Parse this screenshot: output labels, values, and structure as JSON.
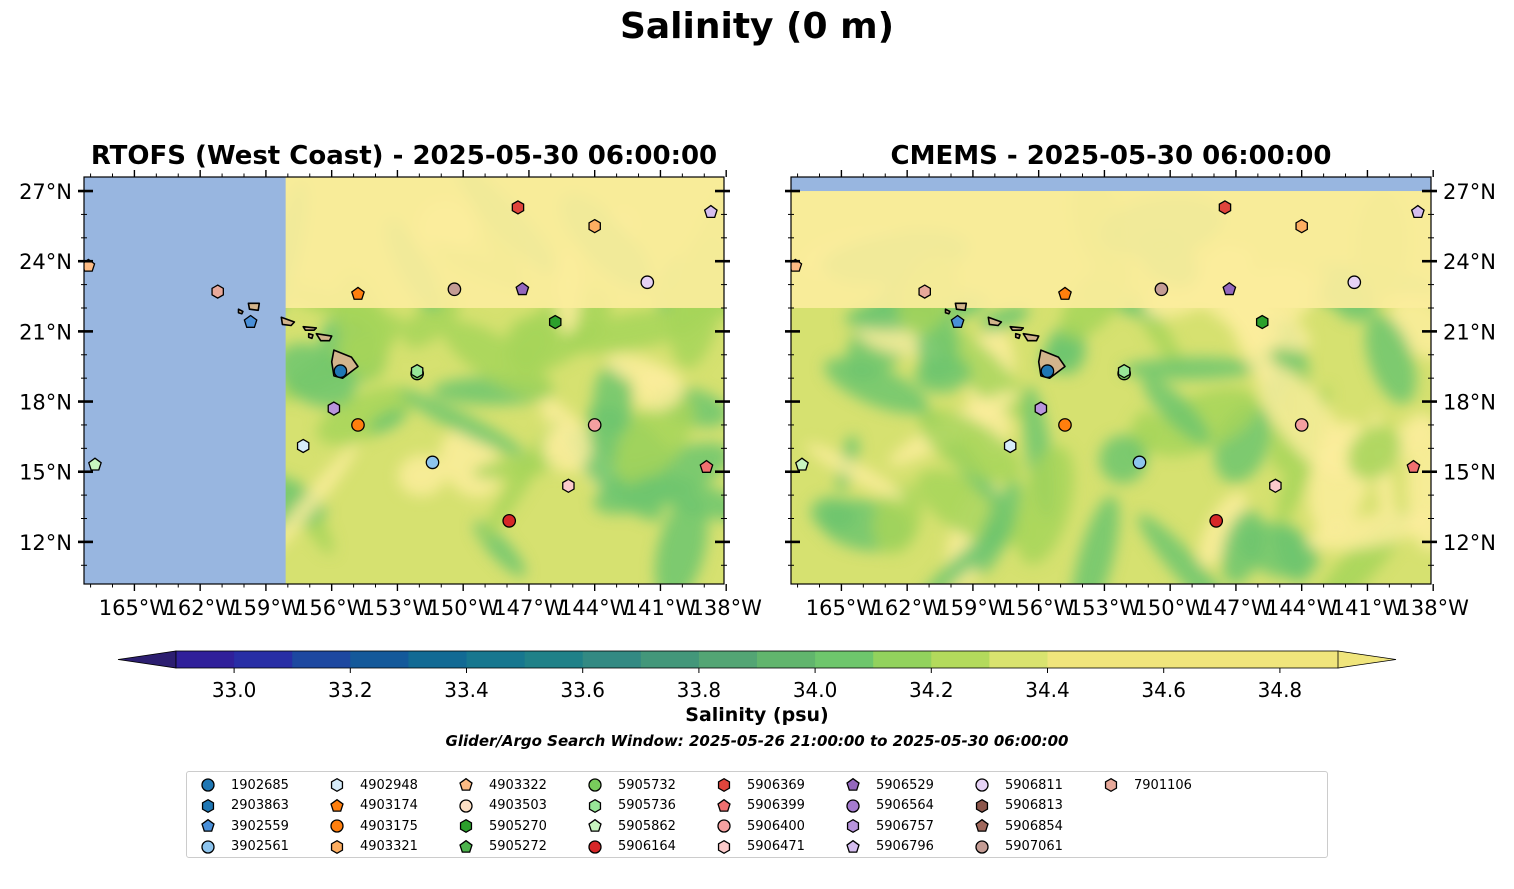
{
  "figure": {
    "suptitle": "Salinity (0 m)",
    "search_window": "Glider/Argo Search Window: 2025-05-26 21:00:00 to 2025-05-30 06:00:00"
  },
  "colors": {
    "land": "#d2b48c",
    "nodata": "#98b6e0",
    "background_fill": "#fbed9c",
    "ocean_low": "#a6d55a",
    "ocean_mid": "#d6e170",
    "ocean_high": "#6dc56e",
    "colorbar": [
      "#2c1e70",
      "#30209a",
      "#282ea5",
      "#1d48a0",
      "#14599a",
      "#126a94",
      "#17778f",
      "#208188",
      "#338a83",
      "#43977a",
      "#53a574",
      "#61b56d",
      "#6ec66c",
      "#92d25d",
      "#b3da5c",
      "#d9e36f",
      "#f0e57c"
    ]
  },
  "chart_data": [
    {
      "type": "heatmap",
      "title": "RTOFS (West Coast) - 2025-05-30 06:00:00",
      "x_ticks": [
        "165°W",
        "162°W",
        "159°W",
        "156°W",
        "153°W",
        "150°W",
        "147°W",
        "144°W",
        "141°W",
        "138°W"
      ],
      "x_tick_values": [
        -165,
        -162,
        -159,
        -156,
        -153,
        -150,
        -147,
        -144,
        -141,
        -138
      ],
      "y_ticks": [
        "12°N",
        "15°N",
        "18°N",
        "21°N",
        "24°N",
        "27°N"
      ],
      "y_tick_values": [
        12,
        15,
        18,
        21,
        24,
        27
      ],
      "xlim": [
        -167.3,
        -138.1
      ],
      "ylim": [
        10.2,
        27.6
      ],
      "data_coverage": {
        "lon_min": -158.1
      },
      "grid": false
    },
    {
      "type": "heatmap",
      "title": "CMEMS - 2025-05-30 06:00:00",
      "x_ticks": [
        "165°W",
        "162°W",
        "159°W",
        "156°W",
        "153°W",
        "150°W",
        "147°W",
        "144°W",
        "141°W",
        "138°W"
      ],
      "x_tick_values": [
        -165,
        -162,
        -159,
        -156,
        -153,
        -150,
        -147,
        -144,
        -141,
        -138
      ],
      "y_ticks": [
        "12°N",
        "15°N",
        "18°N",
        "21°N",
        "24°N",
        "27°N"
      ],
      "y_tick_values": [
        12,
        15,
        18,
        21,
        24,
        27
      ],
      "xlim": [
        -167.3,
        -138.1
      ],
      "ylim": [
        10.2,
        27.6
      ],
      "data_coverage": {
        "lat_max": 27.0
      },
      "grid": false
    }
  ],
  "colorbar": {
    "label": "Salinity (psu)",
    "min": 32.9,
    "max": 34.9,
    "step": 0.1,
    "tick_values": [
      33.0,
      33.2,
      33.4,
      33.6,
      33.8,
      34.0,
      34.2,
      34.4,
      34.6,
      34.8
    ],
    "tick_labels": [
      "33.0",
      "33.2",
      "33.4",
      "33.6",
      "33.8",
      "34.0",
      "34.2",
      "34.4",
      "34.6",
      "34.8"
    ],
    "extend": "both"
  },
  "floats": [
    {
      "id": "1902685",
      "marker": "circle",
      "color": "#1f77b4",
      "lon": -155.6,
      "lat": 19.3
    },
    {
      "id": "2903863",
      "marker": "hexagon",
      "color": "#1f77b4",
      "lon": -164.3,
      "lat": 20.0,
      "in_legend_only": true
    },
    {
      "id": "3902559",
      "marker": "pentagon",
      "color": "#4a90d9",
      "lon": -159.7,
      "lat": 21.4
    },
    {
      "id": "3902561",
      "marker": "circle",
      "color": "#8dc4ee",
      "lon": -151.4,
      "lat": 15.4
    },
    {
      "id": "4902948",
      "marker": "hexagon",
      "color": "#d6ecfa",
      "lon": -157.3,
      "lat": 16.1
    },
    {
      "id": "4903174",
      "marker": "pentagon",
      "color": "#ff7f0e",
      "lon": -154.8,
      "lat": 22.6
    },
    {
      "id": "4903175",
      "marker": "circle",
      "color": "#ff7f0e",
      "lon": -154.8,
      "lat": 17.0
    },
    {
      "id": "4903321",
      "marker": "hexagon",
      "color": "#fdae61",
      "lon": -144.0,
      "lat": 25.5
    },
    {
      "id": "4903322",
      "marker": "pentagon",
      "color": "#fdbb84",
      "lon": -167.1,
      "lat": 23.8
    },
    {
      "id": "4903503",
      "marker": "circle",
      "color": "#fde0c5",
      "lon": -148.0,
      "lat": 11.0,
      "in_legend_only": true
    },
    {
      "id": "5905270",
      "marker": "hexagon",
      "color": "#2ca02c",
      "lon": -145.8,
      "lat": 21.4
    },
    {
      "id": "5905272",
      "marker": "pentagon",
      "color": "#4db34d",
      "lon": -149.5,
      "lat": 11.5,
      "in_legend_only": true
    },
    {
      "id": "5905732",
      "marker": "circle",
      "color": "#78cc5c",
      "lon": -152.1,
      "lat": 19.2
    },
    {
      "id": "5905736",
      "marker": "hexagon",
      "color": "#98e698",
      "lon": -152.1,
      "lat": 19.3
    },
    {
      "id": "5905862",
      "marker": "pentagon",
      "color": "#c8f5c0",
      "lon": -166.8,
      "lat": 15.3
    },
    {
      "id": "5906164",
      "marker": "circle",
      "color": "#d62728",
      "lon": -147.9,
      "lat": 12.9
    },
    {
      "id": "5906369",
      "marker": "hexagon",
      "color": "#e0453c",
      "lon": -147.5,
      "lat": 26.3
    },
    {
      "id": "5906399",
      "marker": "pentagon",
      "color": "#f07070",
      "lon": -138.9,
      "lat": 15.2
    },
    {
      "id": "5906400",
      "marker": "circle",
      "color": "#f4a0a0",
      "lon": -144.0,
      "lat": 17.0
    },
    {
      "id": "5906471",
      "marker": "hexagon",
      "color": "#fbcaca",
      "lon": -145.2,
      "lat": 14.4
    },
    {
      "id": "5906529",
      "marker": "pentagon",
      "color": "#9467bd",
      "lon": -147.3,
      "lat": 22.8
    },
    {
      "id": "5906564",
      "marker": "circle",
      "color": "#a57bcf",
      "lon": -142.0,
      "lat": 11.4,
      "in_legend_only": true
    },
    {
      "id": "5906757",
      "marker": "hexagon",
      "color": "#b894dc",
      "lon": -155.9,
      "lat": 17.7
    },
    {
      "id": "5906796",
      "marker": "pentagon",
      "color": "#d6bef0",
      "lon": -138.7,
      "lat": 26.1
    },
    {
      "id": "5906811",
      "marker": "circle",
      "color": "#e6d2f5",
      "lon": -141.6,
      "lat": 23.1
    },
    {
      "id": "5906813",
      "marker": "hexagon",
      "color": "#8c564b",
      "lon": -141.0,
      "lat": 11.8,
      "in_legend_only": true
    },
    {
      "id": "5906854",
      "marker": "pentagon",
      "color": "#a0685c",
      "lon": -139.8,
      "lat": 11.3,
      "in_legend_only": true
    },
    {
      "id": "5907061",
      "marker": "circle",
      "color": "#c49c94",
      "lon": -150.4,
      "lat": 22.8
    },
    {
      "id": "7901106",
      "marker": "hexagon",
      "color": "#e8a99a",
      "lon": -161.2,
      "lat": 22.7
    }
  ],
  "islands": [
    {
      "name": "Hawaii",
      "outline": [
        [
          -155.9,
          20.2
        ],
        [
          -155.1,
          19.9
        ],
        [
          -154.8,
          19.5
        ],
        [
          -155.5,
          19.0
        ],
        [
          -155.9,
          19.1
        ],
        [
          -156.0,
          19.7
        ]
      ]
    },
    {
      "name": "Maui",
      "outline": [
        [
          -156.7,
          20.9
        ],
        [
          -156.0,
          20.8
        ],
        [
          -156.1,
          20.6
        ],
        [
          -156.5,
          20.6
        ]
      ]
    },
    {
      "name": "Molokai",
      "outline": [
        [
          -157.3,
          21.2
        ],
        [
          -156.7,
          21.15
        ],
        [
          -156.8,
          21.05
        ],
        [
          -157.2,
          21.05
        ]
      ]
    },
    {
      "name": "Lanai",
      "outline": [
        [
          -157.05,
          20.9
        ],
        [
          -156.85,
          20.85
        ],
        [
          -156.9,
          20.7
        ],
        [
          -157.05,
          20.75
        ]
      ]
    },
    {
      "name": "Oahu",
      "outline": [
        [
          -158.3,
          21.6
        ],
        [
          -157.7,
          21.4
        ],
        [
          -157.85,
          21.25
        ],
        [
          -158.25,
          21.3
        ]
      ]
    },
    {
      "name": "Kauai",
      "outline": [
        [
          -159.8,
          22.2
        ],
        [
          -159.3,
          22.2
        ],
        [
          -159.35,
          21.9
        ],
        [
          -159.75,
          21.95
        ]
      ]
    },
    {
      "name": "Niihau",
      "outline": [
        [
          -160.25,
          21.95
        ],
        [
          -160.05,
          21.85
        ],
        [
          -160.1,
          21.75
        ],
        [
          -160.25,
          21.8
        ]
      ]
    }
  ]
}
